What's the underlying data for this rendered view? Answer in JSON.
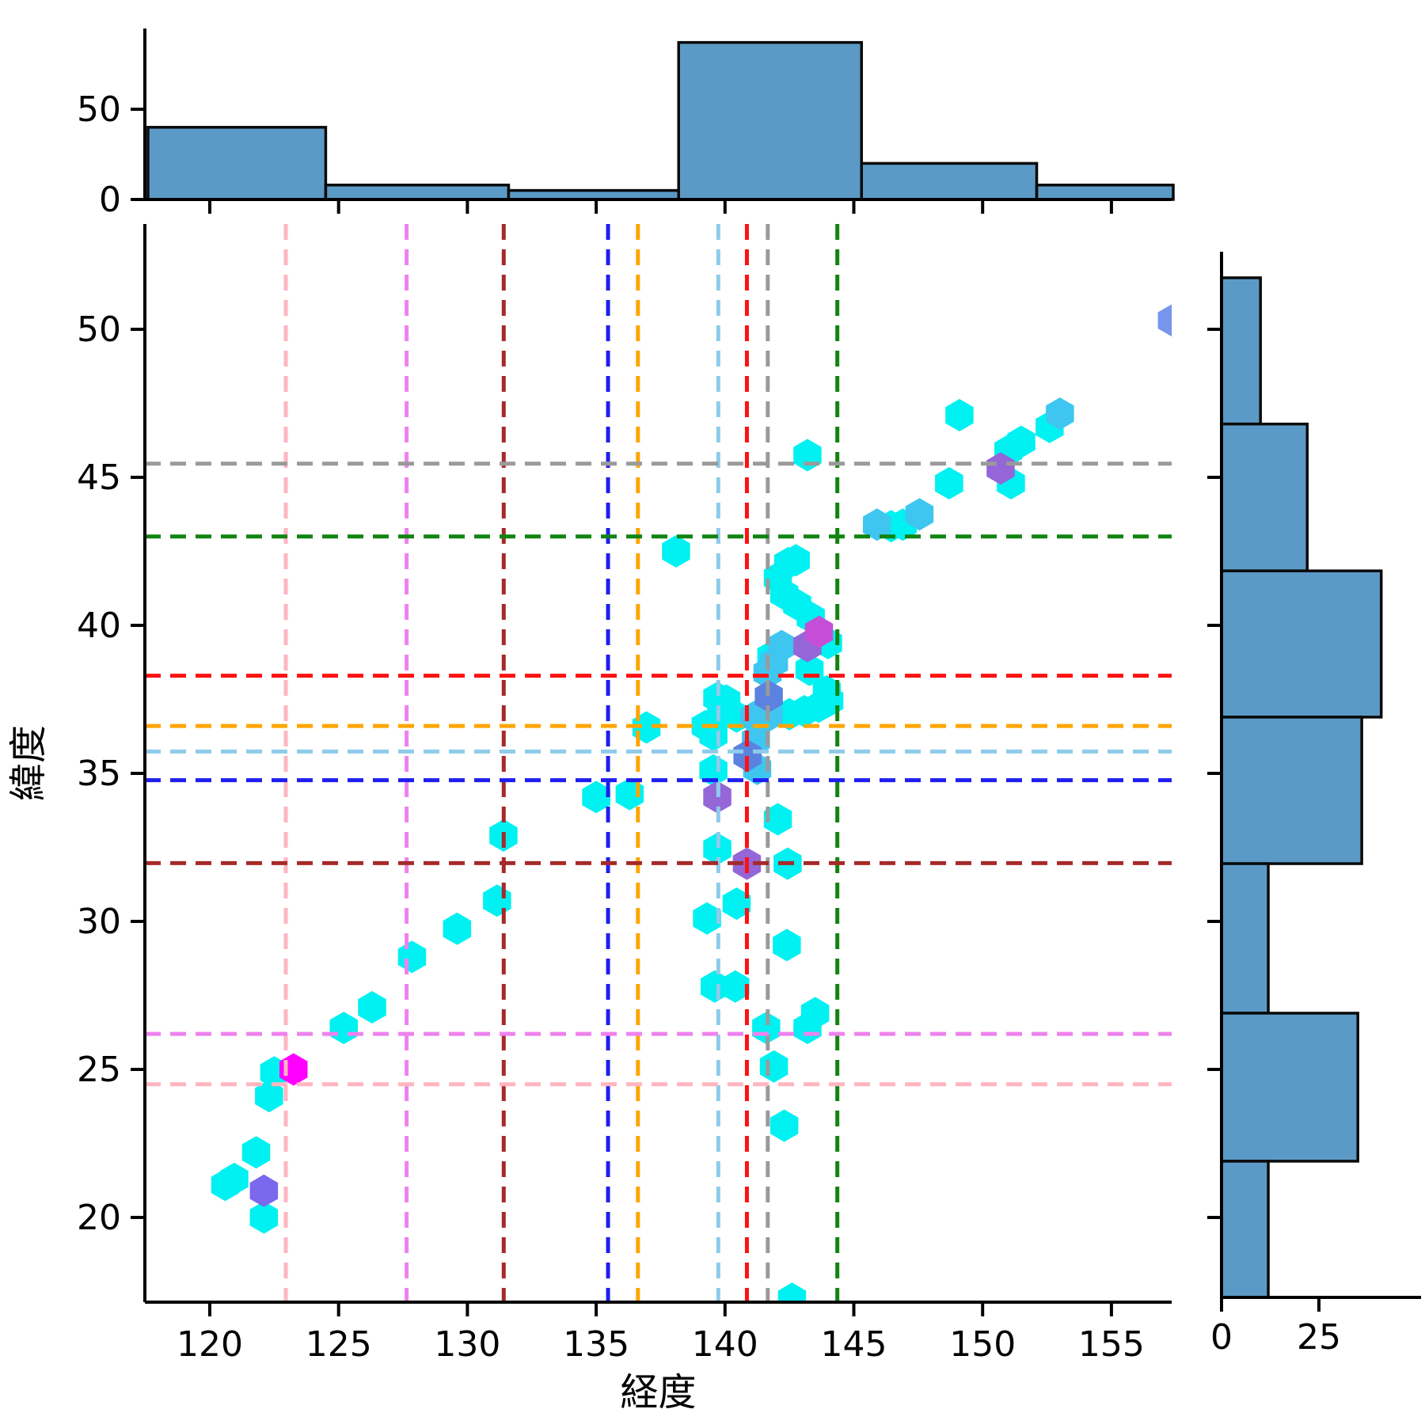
{
  "figure": {
    "xlabel": "経度",
    "ylabel": "緯度",
    "hist_fill": "#5B9AC6",
    "hist_edge": "#0a0a0a",
    "axis_color": "#000000"
  },
  "chart_data": [
    {
      "type": "scatter",
      "name": "main-joint-scatter",
      "xlabel": "経度",
      "ylabel": "緯度",
      "xlim": [
        117.5,
        157.35
      ],
      "ylim": [
        17.1,
        53.5
      ],
      "xticks": [
        120,
        125,
        130,
        135,
        140,
        145,
        150,
        155
      ],
      "yticks": [
        20,
        25,
        30,
        35,
        40,
        45,
        50
      ],
      "grid": false,
      "marker": "hexagon",
      "palette": {
        "c": "#00F1F1",
        "d": "#3EC6F0",
        "f": "#5B82E0",
        "g": "#7795EC",
        "s": "#7B68EE",
        "p": "#9466D8",
        "o": "#C44FD6",
        "m": "#FF00FF"
      },
      "points": [
        [
          120.6,
          21.1,
          "c"
        ],
        [
          120.95,
          21.3,
          "c"
        ],
        [
          121.8,
          22.2,
          "c"
        ],
        [
          122.1,
          20.0,
          "c"
        ],
        [
          122.3,
          24.1,
          "c"
        ],
        [
          122.5,
          24.9,
          "c"
        ],
        [
          125.2,
          26.4,
          "c"
        ],
        [
          126.3,
          27.1,
          "c"
        ],
        [
          127.85,
          28.8,
          "c"
        ],
        [
          129.6,
          29.75,
          "c"
        ],
        [
          131.15,
          30.7,
          "c"
        ],
        [
          131.4,
          32.9,
          "c"
        ],
        [
          135.0,
          34.2,
          "c"
        ],
        [
          136.3,
          34.3,
          "c"
        ],
        [
          136.95,
          36.55,
          "c"
        ],
        [
          138.1,
          42.5,
          "c"
        ],
        [
          139.25,
          36.6,
          "c"
        ],
        [
          139.55,
          36.3,
          "c"
        ],
        [
          139.55,
          35.1,
          "c"
        ],
        [
          139.6,
          27.8,
          "c"
        ],
        [
          139.3,
          30.1,
          "c"
        ],
        [
          139.7,
          32.45,
          "c"
        ],
        [
          140.45,
          30.6,
          "c"
        ],
        [
          140.4,
          27.8,
          "c"
        ],
        [
          141.6,
          26.4,
          "c"
        ],
        [
          141.9,
          25.1,
          "c"
        ],
        [
          142.3,
          23.1,
          "c"
        ],
        [
          142.4,
          29.2,
          "c"
        ],
        [
          142.43,
          31.95,
          "c"
        ],
        [
          143.2,
          26.4,
          "c"
        ],
        [
          143.5,
          26.9,
          "c"
        ],
        [
          142.05,
          33.45,
          "c"
        ],
        [
          142.6,
          17.25,
          "c"
        ],
        [
          139.7,
          37.55,
          "c"
        ],
        [
          139.85,
          37.05,
          "c"
        ],
        [
          140.05,
          37.46,
          "c"
        ],
        [
          140.45,
          36.92,
          "c"
        ],
        [
          142.5,
          37.0,
          "c"
        ],
        [
          143.08,
          37.1,
          "c"
        ],
        [
          143.64,
          37.25,
          "c"
        ],
        [
          144.05,
          37.45,
          "c"
        ],
        [
          143.95,
          37.77,
          "c"
        ],
        [
          141.8,
          38.95,
          "c"
        ],
        [
          143.28,
          38.5,
          "c"
        ],
        [
          144.0,
          39.4,
          "c"
        ],
        [
          143.33,
          40.27,
          "c"
        ],
        [
          142.8,
          40.7,
          "c"
        ],
        [
          142.3,
          41.05,
          "c"
        ],
        [
          142.05,
          41.6,
          "c"
        ],
        [
          142.45,
          42.1,
          "c"
        ],
        [
          142.75,
          42.2,
          "c"
        ],
        [
          143.2,
          45.75,
          "c"
        ],
        [
          146.45,
          43.35,
          "c"
        ],
        [
          146.9,
          43.4,
          "c"
        ],
        [
          148.7,
          44.8,
          "c"
        ],
        [
          149.1,
          47.1,
          "c"
        ],
        [
          151.1,
          44.8,
          "c"
        ],
        [
          151.0,
          45.9,
          "c"
        ],
        [
          151.5,
          46.2,
          "c"
        ],
        [
          152.6,
          46.7,
          "c"
        ],
        [
          141.13,
          36.9,
          "d"
        ],
        [
          141.7,
          36.95,
          "d"
        ],
        [
          141.2,
          36.13,
          "d"
        ],
        [
          141.25,
          35.15,
          "d"
        ],
        [
          141.65,
          38.4,
          "d"
        ],
        [
          141.9,
          38.75,
          "d"
        ],
        [
          142.2,
          39.3,
          "d"
        ],
        [
          145.9,
          43.4,
          "d"
        ],
        [
          147.55,
          43.75,
          "d"
        ],
        [
          153.0,
          47.15,
          "d"
        ],
        [
          141.7,
          37.6,
          "f"
        ],
        [
          140.87,
          35.6,
          "f"
        ],
        [
          157.35,
          50.3,
          "g"
        ],
        [
          122.1,
          20.9,
          "s"
        ],
        [
          139.7,
          34.2,
          "p"
        ],
        [
          140.85,
          31.95,
          "p"
        ],
        [
          143.2,
          39.3,
          "p"
        ],
        [
          150.7,
          45.3,
          "p"
        ],
        [
          143.65,
          39.78,
          "o"
        ],
        [
          123.25,
          25.0,
          "m"
        ]
      ],
      "ref_lines_vertical": [
        {
          "x": 122.95,
          "color": "#FFB6C1"
        },
        {
          "x": 127.64,
          "color": "#EE82EE"
        },
        {
          "x": 131.41,
          "color": "#A52A2A"
        },
        {
          "x": 135.46,
          "color": "#1E1EF0"
        },
        {
          "x": 136.62,
          "color": "#FFA500"
        },
        {
          "x": 139.74,
          "color": "#8FCBEA"
        },
        {
          "x": 140.85,
          "color": "#FF1111"
        },
        {
          "x": 141.66,
          "color": "#9A9A9A"
        },
        {
          "x": 144.36,
          "color": "#108410"
        }
      ],
      "ref_lines_horizontal": [
        {
          "y": 45.46,
          "color": "#9A9A9A"
        },
        {
          "y": 43.0,
          "color": "#108410"
        },
        {
          "y": 38.3,
          "color": "#FF1111"
        },
        {
          "y": 36.6,
          "color": "#FFA500"
        },
        {
          "y": 35.74,
          "color": "#8FCBEA"
        },
        {
          "y": 34.77,
          "color": "#1E1EF0"
        },
        {
          "y": 31.97,
          "color": "#A52A2A"
        },
        {
          "y": 26.2,
          "color": "#EE82EE"
        },
        {
          "y": 24.5,
          "color": "#FFB6C1"
        }
      ]
    },
    {
      "type": "bar",
      "name": "top-marginal-histogram",
      "orientation": "vertical",
      "bin_edges": [
        117.6,
        124.5,
        131.6,
        138.2,
        145.3,
        152.1,
        157.4
      ],
      "values": [
        40,
        8,
        5,
        87,
        20,
        8
      ],
      "yticks": [
        0,
        50
      ],
      "ymax": 93
    },
    {
      "type": "bar",
      "name": "right-marginal-histogram",
      "orientation": "horizontal",
      "bin_edges": [
        51.74,
        46.8,
        41.84,
        36.9,
        31.95,
        26.9,
        21.9,
        17.3
      ],
      "values": [
        10,
        22,
        41,
        36,
        12,
        35,
        12
      ],
      "xticks": [
        0,
        25
      ],
      "xmax": 50
    }
  ]
}
